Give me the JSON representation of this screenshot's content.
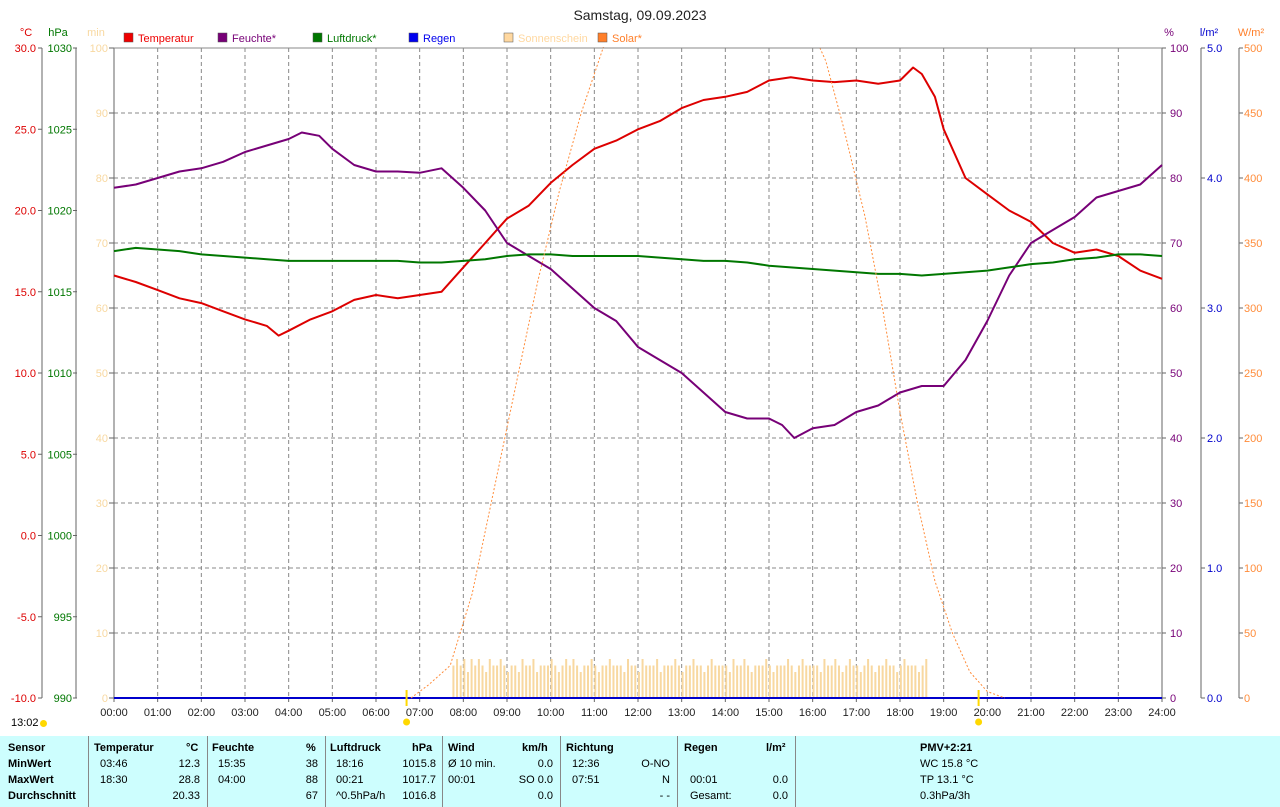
{
  "title": "Samstag, 09.09.2023",
  "clock": "13:02",
  "axis_units": {
    "temp": "°C",
    "press": "hPa",
    "sun": "min",
    "hum": "%",
    "rain": "l/m²",
    "solar": "W/m²"
  },
  "legend": [
    {
      "label": "Temperatur",
      "color": "#ee0000"
    },
    {
      "label": "Feuchte*",
      "color": "#770077"
    },
    {
      "label": "Luftdruck*",
      "color": "#007700"
    },
    {
      "label": "Regen",
      "color": "#0000ee"
    },
    {
      "label": "Sonnenschein",
      "color": "#ffd8a0"
    },
    {
      "label": "Solar*",
      "color": "#ff7f2a"
    }
  ],
  "colors": {
    "temp": "#dd0000",
    "hum": "#770077",
    "press": "#007700",
    "rain": "#0000cc",
    "sun": "#f8d8a0",
    "solar": "#ff8c3a",
    "sunrise": "#ffd800",
    "grid": "#888888"
  },
  "chart_data": {
    "type": "line",
    "x_label_unit": "hour",
    "x_ticks": [
      "00:00",
      "01:00",
      "02:00",
      "03:00",
      "04:00",
      "05:00",
      "06:00",
      "07:00",
      "08:00",
      "09:00",
      "10:00",
      "11:00",
      "12:00",
      "13:00",
      "14:00",
      "15:00",
      "16:00",
      "17:00",
      "18:00",
      "19:00",
      "20:00",
      "21:00",
      "22:00",
      "23:00",
      "24:00"
    ],
    "xlim": [
      0,
      24
    ],
    "axes": {
      "temp": {
        "ylim": [
          -10,
          30
        ],
        "ticks": [
          "30.0",
          "25.0",
          "20.0",
          "15.0",
          "10.0",
          "5.0",
          "0.0",
          "-5.0",
          "-10.0"
        ]
      },
      "press": {
        "ylim": [
          990,
          1030
        ],
        "ticks": [
          "1030",
          "1025",
          "1020",
          "1015",
          "1010",
          "1005",
          "1000",
          "995",
          "990"
        ]
      },
      "sun": {
        "ylim": [
          0,
          100
        ],
        "ticks": [
          "100",
          "90",
          "80",
          "70",
          "60",
          "50",
          "40",
          "30",
          "20",
          "10",
          "0"
        ]
      },
      "hum": {
        "ylim": [
          0,
          100
        ],
        "ticks": [
          "100",
          "90",
          "80",
          "70",
          "60",
          "50",
          "40",
          "30",
          "20",
          "10",
          "0"
        ]
      },
      "rain": {
        "ylim": [
          0,
          5
        ],
        "ticks": [
          "5.0",
          "4.0",
          "3.0",
          "2.0",
          "1.0",
          "0.0"
        ]
      },
      "solar": {
        "ylim": [
          0,
          500
        ],
        "ticks": [
          "500",
          "450",
          "400",
          "350",
          "300",
          "250",
          "200",
          "150",
          "100",
          "50",
          "0"
        ]
      }
    },
    "series": [
      {
        "name": "Temperatur",
        "axis": "temp",
        "x": [
          0,
          0.5,
          1,
          1.5,
          2,
          2.5,
          3,
          3.5,
          3.77,
          4,
          4.5,
          5,
          5.5,
          6,
          6.5,
          7,
          7.5,
          8,
          8.5,
          9,
          9.5,
          10,
          10.5,
          11,
          11.5,
          12,
          12.5,
          13,
          13.5,
          14,
          14.5,
          15,
          15.5,
          16,
          16.5,
          17,
          17.5,
          18,
          18.3,
          18.5,
          18.8,
          19,
          19.5,
          20,
          20.5,
          21,
          21.5,
          22,
          22.5,
          23,
          23.5,
          24
        ],
        "y": [
          16.0,
          15.6,
          15.1,
          14.6,
          14.3,
          13.8,
          13.3,
          12.9,
          12.3,
          12.6,
          13.3,
          13.8,
          14.5,
          14.8,
          14.6,
          14.8,
          15.0,
          16.5,
          18.0,
          19.5,
          20.3,
          21.7,
          22.8,
          23.8,
          24.3,
          25.0,
          25.5,
          26.3,
          26.8,
          27.0,
          27.3,
          28.0,
          28.2,
          28.0,
          27.9,
          28.0,
          27.8,
          28.0,
          28.8,
          28.4,
          27.0,
          25.0,
          22.0,
          21.0,
          20.0,
          19.3,
          18.0,
          17.4,
          17.6,
          17.2,
          16.3,
          15.8
        ]
      },
      {
        "name": "Feuchte*",
        "axis": "hum",
        "x": [
          0,
          0.5,
          1,
          1.5,
          2,
          2.5,
          3,
          3.5,
          4,
          4.3,
          4.7,
          5,
          5.5,
          6,
          6.5,
          7,
          7.5,
          8,
          8.5,
          9,
          9.5,
          10,
          10.5,
          11,
          11.5,
          12,
          12.5,
          13,
          13.5,
          14,
          14.5,
          15,
          15.3,
          15.58,
          16,
          16.5,
          17,
          17.5,
          18,
          18.5,
          19,
          19.5,
          20,
          20.5,
          21,
          21.5,
          22,
          22.5,
          23,
          23.5,
          24
        ],
        "y": [
          78.5,
          79,
          80,
          81,
          81.5,
          82.5,
          84,
          85,
          86,
          87,
          86.5,
          84.5,
          82,
          81,
          81,
          80.8,
          81.5,
          78.5,
          75,
          70,
          68,
          66,
          63,
          60,
          58,
          54,
          52,
          50,
          47,
          44,
          43,
          43,
          42,
          40,
          41.5,
          42,
          44,
          45,
          47,
          48,
          48,
          52,
          58,
          65,
          70,
          72,
          74,
          77,
          78,
          79,
          82
        ]
      },
      {
        "name": "Luftdruck*",
        "axis": "press",
        "x": [
          0,
          0.5,
          1,
          1.5,
          2,
          2.5,
          3,
          3.5,
          4,
          4.5,
          5,
          5.5,
          6,
          6.5,
          7,
          7.5,
          8,
          8.5,
          9,
          9.5,
          10,
          10.5,
          11,
          11.5,
          12,
          12.5,
          13,
          13.5,
          14,
          14.5,
          15,
          15.5,
          16,
          16.5,
          17,
          17.5,
          18,
          18.5,
          19,
          19.5,
          20,
          20.5,
          21,
          21.5,
          22,
          22.5,
          23,
          23.5,
          24
        ],
        "y": [
          1017.5,
          1017.7,
          1017.6,
          1017.5,
          1017.3,
          1017.2,
          1017.1,
          1017.0,
          1016.9,
          1016.9,
          1016.9,
          1016.9,
          1016.9,
          1016.9,
          1016.8,
          1016.8,
          1016.9,
          1017.0,
          1017.2,
          1017.3,
          1017.3,
          1017.2,
          1017.2,
          1017.2,
          1017.2,
          1017.1,
          1017.0,
          1016.9,
          1016.9,
          1016.8,
          1016.6,
          1016.5,
          1016.4,
          1016.3,
          1016.2,
          1016.1,
          1016.1,
          1016.0,
          1016.1,
          1016.2,
          1016.3,
          1016.5,
          1016.7,
          1016.8,
          1017.0,
          1017.1,
          1017.3,
          1017.3,
          1017.2
        ]
      },
      {
        "name": "Regen",
        "axis": "rain",
        "x": [
          0,
          24
        ],
        "y": [
          0,
          0
        ]
      },
      {
        "name": "Solar*",
        "axis": "solar",
        "x": [
          6.8,
          7.2,
          7.7,
          8.2,
          8.7,
          9.2,
          9.7,
          10.2,
          10.7,
          11.1,
          11.4,
          15.9,
          16.3,
          16.7,
          17.2,
          17.6,
          18.0,
          18.4,
          18.8,
          19.2,
          19.6,
          20.0,
          20.4
        ],
        "y": [
          0,
          10,
          25,
          80,
          160,
          240,
          320,
          390,
          450,
          490,
          520,
          520,
          490,
          440,
          370,
          300,
          220,
          150,
          90,
          50,
          20,
          5,
          0
        ]
      }
    ],
    "sunshine_bars": {
      "start_hour": 7.75,
      "end_hour": 18.67,
      "step_hours": 0.0833,
      "values_min": [
        5,
        6,
        5,
        6,
        4,
        6,
        5,
        6,
        5,
        4,
        6,
        5,
        5,
        6,
        5,
        4,
        5,
        5,
        4,
        6,
        5,
        5,
        6,
        4,
        5,
        5,
        5,
        6,
        5,
        4,
        5,
        6,
        5,
        6,
        5,
        4,
        5,
        5,
        6,
        5,
        4,
        5,
        5,
        6,
        5,
        5,
        5,
        4,
        6,
        5,
        5,
        4,
        6,
        5,
        5,
        5,
        6,
        4,
        5,
        5,
        5,
        6,
        5,
        4,
        5,
        5,
        6,
        5,
        5,
        4,
        5,
        6,
        5,
        5,
        5,
        5,
        4,
        6,
        5,
        5,
        6,
        5,
        4,
        5,
        5,
        5,
        6,
        5,
        4,
        5,
        5,
        5,
        6,
        5,
        4,
        5,
        6,
        5,
        5,
        5,
        5,
        4,
        6,
        5,
        5,
        6,
        5,
        4,
        5,
        6,
        5,
        5,
        4,
        5,
        6,
        5,
        4,
        5,
        5,
        6,
        5,
        5,
        4,
        5,
        6,
        5,
        5,
        5,
        4,
        5,
        6
      ]
    },
    "sun_markers": [
      {
        "hour": 6.7,
        "label": ""
      },
      {
        "hour": 19.8,
        "label": ""
      }
    ]
  },
  "stats": {
    "headers": {
      "sensor": "Sensor",
      "temp": "Temperatur",
      "temp_u": "°C",
      "hum": "Feuchte",
      "hum_u": "%",
      "press": "Luftdruck",
      "press_u": "hPa",
      "wind": "Wind",
      "wind_u": "km/h",
      "dir": "Richtung",
      "rain": "Regen",
      "rain_u": "l/m²",
      "pmv": "PMV+2:21"
    },
    "rows": [
      {
        "label": "MinWert",
        "temp_t": "03:46",
        "temp_v": "12.3",
        "hum_t": "15:35",
        "hum_v": "38",
        "press_t": "18:16",
        "press_v": "1015.8",
        "wind_t": "Ø 10 min.",
        "wind_v": "0.0",
        "dir_t": "12:36",
        "dir_v": "O-NO",
        "rain_t": "",
        "rain_v": "",
        "extra": "WC 15.8 °C"
      },
      {
        "label": "MaxWert",
        "temp_t": "18:30",
        "temp_v": "28.8",
        "hum_t": "04:00",
        "hum_v": "88",
        "press_t": "00:21",
        "press_v": "1017.7",
        "wind_t": "00:01",
        "wind_v": "SO 0.0",
        "dir_t": "07:51",
        "dir_v": "N",
        "rain_t": "00:01",
        "rain_v": "0.0",
        "extra": "TP 13.1 °C"
      },
      {
        "label": "Durchschnitt",
        "temp_t": "",
        "temp_v": "20.33",
        "hum_t": "",
        "hum_v": "67",
        "press_t": "^0.5hPa/h",
        "press_v": "1016.8",
        "wind_t": "",
        "wind_v": "0.0",
        "dir_t": "",
        "dir_v": "- -",
        "rain_t": "Gesamt:",
        "rain_v": "0.0",
        "extra": "0.3hPa/3h"
      }
    ]
  }
}
